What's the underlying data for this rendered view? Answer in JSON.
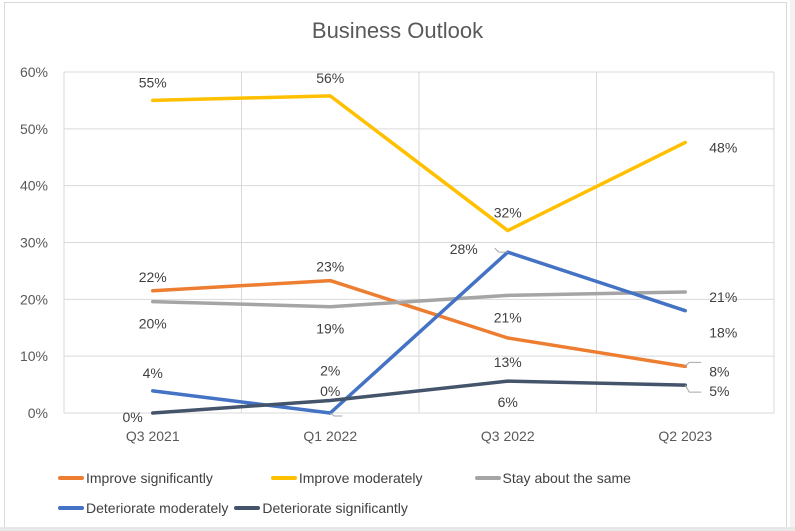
{
  "chart_data": {
    "type": "line",
    "title": "Business Outlook",
    "xlabel": "",
    "ylabel": "",
    "categories": [
      "Q3 2021",
      "Q1 2022",
      "Q3 2022",
      "Q2 2023"
    ],
    "ylim": [
      0,
      60
    ],
    "yticks": [
      0,
      10,
      20,
      30,
      40,
      50,
      60
    ],
    "ytick_labels": [
      "0%",
      "10%",
      "20%",
      "30%",
      "40%",
      "50%",
      "60%"
    ],
    "grid": true,
    "legend_position": "bottom",
    "series": [
      {
        "name": "Improve significantly",
        "color": "#ED7D31",
        "values": [
          21.5,
          23.3,
          13.2,
          8.2
        ],
        "labels": [
          "22%",
          "23%",
          "13%",
          "8%"
        ]
      },
      {
        "name": "Improve moderately",
        "color": "#FFC000",
        "values": [
          55,
          55.8,
          32.1,
          47.6
        ],
        "labels": [
          "55%",
          "56%",
          "32%",
          "48%"
        ]
      },
      {
        "name": "Stay about the same",
        "color": "#A5A5A5",
        "values": [
          19.6,
          18.7,
          20.7,
          21.3
        ],
        "labels": [
          "20%",
          "19%",
          "21%",
          "21%"
        ]
      },
      {
        "name": "Deteriorate moderately",
        "color": "#4472C4",
        "values": [
          3.9,
          0,
          28.3,
          18
        ],
        "labels": [
          "4%",
          "0%",
          "28%",
          "18%"
        ]
      },
      {
        "name": "Deteriorate significantly",
        "color": "#44546A",
        "values": [
          0,
          2.2,
          5.6,
          4.9
        ],
        "labels": [
          "0%",
          "2%",
          "6%",
          "5%"
        ]
      }
    ]
  }
}
